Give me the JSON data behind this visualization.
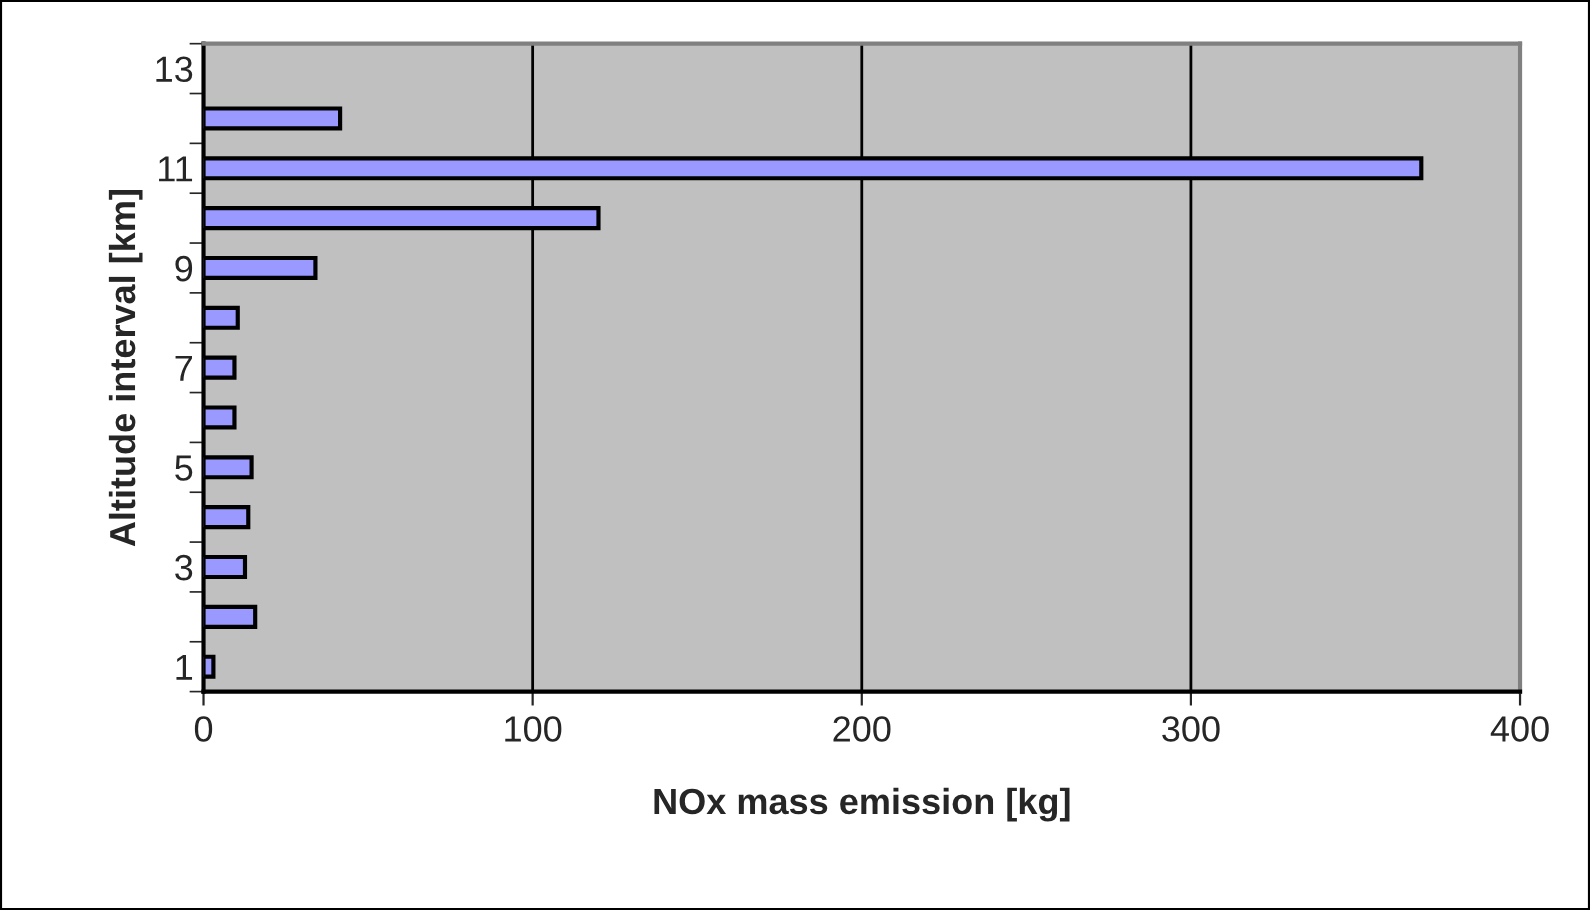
{
  "chart_data": {
    "type": "bar",
    "orientation": "horizontal",
    "categories": [
      "13",
      null,
      "11",
      null,
      "9",
      null,
      "7",
      null,
      "5",
      null,
      "3",
      null,
      "1"
    ],
    "values": [
      null,
      41.5,
      370,
      120,
      34,
      10.4,
      9.4,
      9.4,
      14.6,
      13.6,
      12.6,
      15.7,
      3
    ],
    "color": "#9999ff",
    "xlim": [
      0,
      400
    ],
    "xticks": [
      0,
      100,
      200,
      300,
      400
    ],
    "xlabel": "NOx mass emission [kg]",
    "ylabel": "Altitude interval [km]",
    "grid": "x",
    "legend": false
  }
}
